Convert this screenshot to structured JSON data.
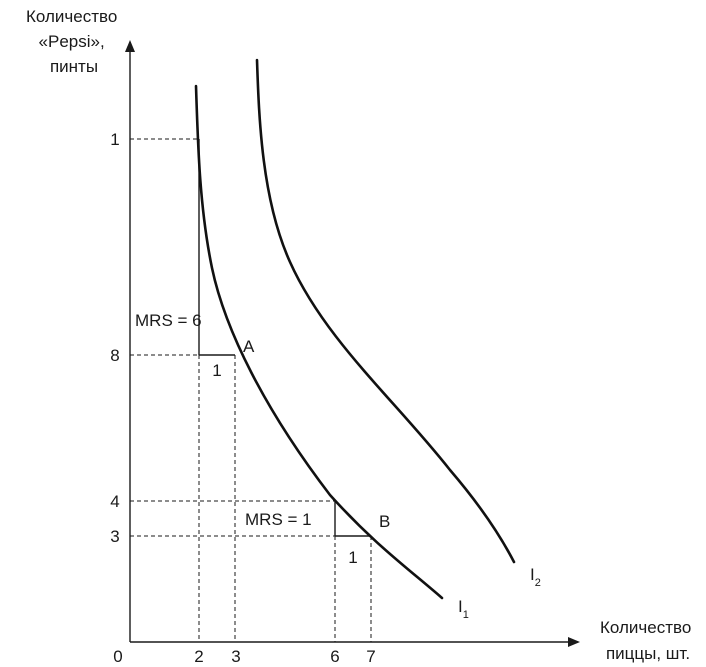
{
  "y_axis_title": [
    "Количество",
    "«Pepsi»,",
    "пинты"
  ],
  "x_axis_title": [
    "Количество",
    "пиццы, шт."
  ],
  "origin_label": "0",
  "x_ticks": [
    "2",
    "3",
    "6",
    "7"
  ],
  "y_ticks": [
    "1",
    "8",
    "4",
    "3"
  ],
  "curve_labels": {
    "i1_main": "I",
    "i1_sub": "1",
    "i2_main": "I",
    "i2_sub": "2"
  },
  "points": {
    "a": "A",
    "b": "B"
  },
  "mrs_labels": {
    "upper": "MRS = 6",
    "lower": "MRS = 1"
  },
  "step_labels": {
    "upper": "1",
    "lower": "1"
  },
  "colors": {
    "ink": "#1a1a1a",
    "background": "#ffffff"
  }
}
